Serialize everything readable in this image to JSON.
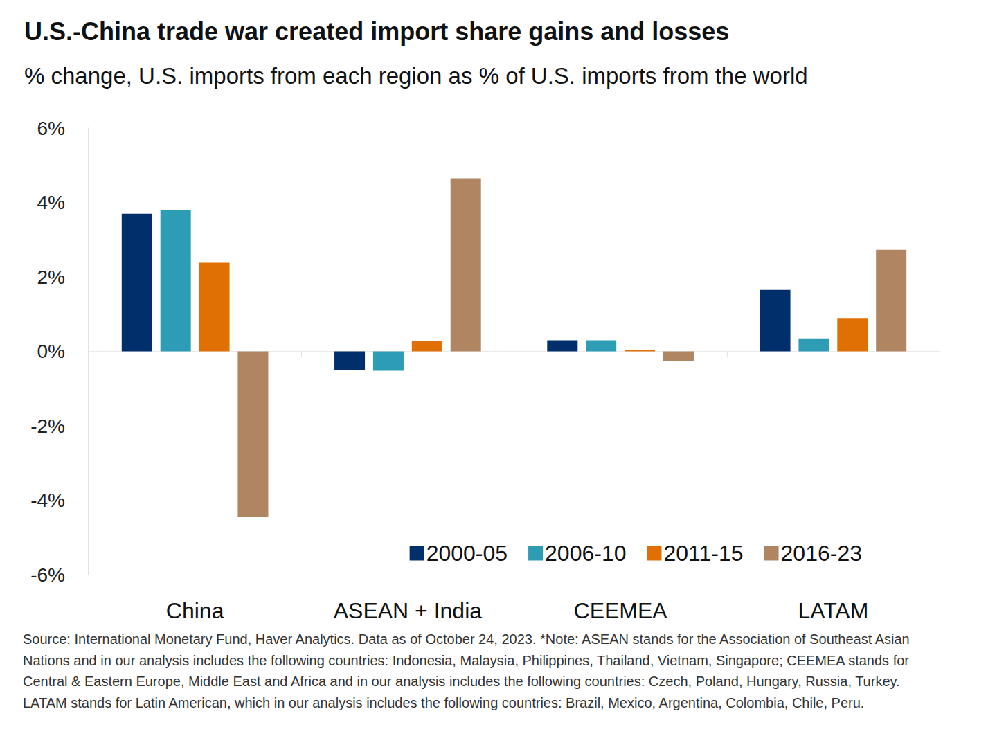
{
  "chart_data": {
    "type": "bar",
    "title": "U.S.-China trade war created import share gains and losses",
    "subtitle": "% change, U.S. imports from each region as % of U.S. imports from the world",
    "note": "Source: International Monetary Fund, Haver Analytics. Data as of October 24, 2023. *Note: ASEAN stands for the Association of Southeast Asian Nations and in our analysis includes the following countries: Indonesia, Malaysia, Philippines, Thailand, Vietnam, Singapore; CEEMEA stands for Central & Eastern Europe, Middle East and Africa and in our analysis includes the following countries: Czech, Poland, Hungary, Russia, Turkey. LATAM stands for Latin American, which in our analysis includes the following countries: Brazil, Mexico, Argentina, Colombia, Chile, Peru.",
    "categories": [
      "China",
      "ASEAN + India",
      "CEEMEA",
      "LATAM"
    ],
    "series": [
      {
        "name": "2000-05",
        "color": "#002f6c",
        "values": [
          3.7,
          -0.5,
          0.3,
          1.65
        ]
      },
      {
        "name": "2006-10",
        "color": "#2c9db5",
        "values": [
          3.8,
          -0.52,
          0.3,
          0.35
        ]
      },
      {
        "name": "2011-15",
        "color": "#e07004",
        "values": [
          2.38,
          0.27,
          0.03,
          0.88
        ]
      },
      {
        "name": "2016-23",
        "color": "#b08562",
        "values": [
          -4.45,
          4.65,
          -0.25,
          2.73
        ]
      }
    ],
    "ylim": [
      -6,
      6
    ],
    "yticks": [
      {
        "value": -6,
        "label": "-6%"
      },
      {
        "value": -4,
        "label": "-4%"
      },
      {
        "value": -2,
        "label": "-2%"
      },
      {
        "value": 0,
        "label": "0%"
      },
      {
        "value": 2,
        "label": "2%"
      },
      {
        "value": 4,
        "label": "4%"
      },
      {
        "value": 6,
        "label": "6%"
      }
    ],
    "grid": false,
    "legend": "lower right"
  }
}
